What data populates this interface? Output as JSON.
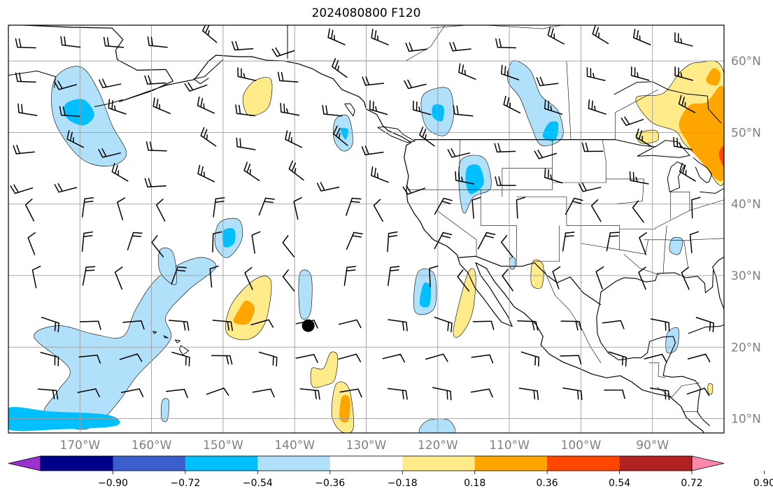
{
  "title": "2024080800 F120",
  "map": {
    "projection": "PlateCarree",
    "lon_range": [
      -180,
      -80
    ],
    "lat_range": [
      8,
      65
    ],
    "lat_ticks": [
      {
        "lat": 60,
        "label": "60°N"
      },
      {
        "lat": 50,
        "label": "50°N"
      },
      {
        "lat": 40,
        "label": "40°N"
      },
      {
        "lat": 30,
        "label": "30°N"
      },
      {
        "lat": 20,
        "label": "20°N"
      },
      {
        "lat": 10,
        "label": "10°N"
      }
    ],
    "lon_ticks": [
      {
        "lon": -170,
        "label": "170°W"
      },
      {
        "lon": -160,
        "label": "160°W"
      },
      {
        "lon": -150,
        "label": "150°W"
      },
      {
        "lon": -140,
        "label": "140°W"
      },
      {
        "lon": -130,
        "label": "130°W"
      },
      {
        "lon": -120,
        "label": "120°W"
      },
      {
        "lon": -110,
        "label": "110°W"
      },
      {
        "lon": -100,
        "label": "100°W"
      },
      {
        "lon": -90,
        "label": "90°W"
      }
    ],
    "gridlines": true,
    "colors": {
      "frame": "#000000",
      "grid": "#9e9e9e",
      "coast": "#000000",
      "border": "#000000"
    }
  },
  "colorbar": {
    "colors": [
      "#9b30d0",
      "#00008b",
      "#3a5fcd",
      "#00bfff",
      "#b0e0fa",
      "#ffffff",
      "#ffeb8a",
      "#ffa500",
      "#ff4500",
      "#b22222",
      "#ff88aa"
    ],
    "tick_labels": [
      "−0.90",
      "−0.72",
      "−0.54",
      "−0.36",
      "−0.18",
      "0.18",
      "0.36",
      "0.54",
      "0.72",
      "0.90"
    ],
    "extend": "both"
  },
  "features": {
    "marker": {
      "lon": -138.1,
      "lat": 23.0,
      "color": "#000000"
    }
  }
}
